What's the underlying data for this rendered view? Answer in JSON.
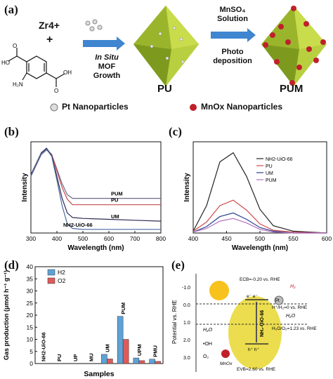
{
  "panels": {
    "a": {
      "label": "(a)",
      "reagent_zr": "Zr4+",
      "plus": "+",
      "struct_labels": {
        "cooh1": "HO",
        "cooh2": "OH",
        "nh2": "H₂N",
        "o1": "O",
        "o2": "O"
      },
      "step1": [
        "In Situ",
        "MOF",
        "Growth"
      ],
      "step2_top": [
        "MnSO₄",
        "Solution"
      ],
      "step2_bottom": [
        "Photo",
        "deposition"
      ],
      "product1": "PU",
      "product2": "PUM",
      "legend_pt": "Pt Nanoparticles",
      "legend_mn": "MnOx Nanoparticles"
    },
    "b": {
      "label": "(b)"
    },
    "c": {
      "label": "(c)"
    },
    "d": {
      "label": "(d)"
    },
    "e": {
      "label": "(e)",
      "ylabel": "Potential vs. RHE",
      "ticks": [
        "-1.0",
        "0.0",
        "1.0",
        "2.0",
        "3.0"
      ],
      "ecb": "ECB=-0.20 vs. RHE",
      "evb": "EVB=2.60 vs. RHE",
      "h2_level": "H⁺/H₂=0 vs. RHE",
      "o2_level": "H₂O/O₂=1.23 vs. RHE",
      "h2": "H₂",
      "h2o_right": "H₂O",
      "h2o_left": "H₂O",
      "oh": "•OH",
      "o2": "O₂",
      "mnox": "MnOx",
      "pt": "Pt",
      "electrons": "e⁻ e⁻",
      "holes": "h⁺ h⁺",
      "mof": "NH₂-UiO-66"
    }
  },
  "chart_data": [
    {
      "panel": "b",
      "type": "line",
      "xlabel": "Wavelength (nm)",
      "ylabel": "Intensity",
      "xlim": [
        300,
        800
      ],
      "xticks": [
        300,
        400,
        500,
        600,
        700,
        800
      ],
      "series": [
        {
          "name": "PUM",
          "color": "#6a6a8a",
          "x": [
            300,
            320,
            340,
            360,
            380,
            400,
            420,
            440,
            460,
            500,
            600,
            700,
            800
          ],
          "y": [
            0.62,
            0.74,
            0.86,
            0.91,
            0.86,
            0.7,
            0.54,
            0.42,
            0.38,
            0.38,
            0.38,
            0.38,
            0.38
          ]
        },
        {
          "name": "PU",
          "color": "#c64a4a",
          "x": [
            300,
            320,
            340,
            360,
            380,
            400,
            420,
            440,
            460,
            500,
            600,
            700,
            800
          ],
          "y": [
            0.63,
            0.75,
            0.87,
            0.92,
            0.86,
            0.68,
            0.5,
            0.37,
            0.31,
            0.31,
            0.31,
            0.31,
            0.31
          ]
        },
        {
          "name": "UM",
          "color": "#2a2a55",
          "x": [
            300,
            320,
            340,
            360,
            380,
            400,
            420,
            440,
            460,
            500,
            600,
            700,
            800
          ],
          "y": [
            0.64,
            0.76,
            0.88,
            0.93,
            0.85,
            0.62,
            0.38,
            0.22,
            0.17,
            0.16,
            0.15,
            0.14,
            0.13
          ]
        },
        {
          "name": "NH2-UiO-66",
          "color": "#4a6aa0",
          "x": [
            300,
            320,
            340,
            360,
            380,
            400,
            420,
            440,
            460,
            500,
            600,
            700,
            800
          ],
          "y": [
            0.63,
            0.75,
            0.87,
            0.92,
            0.84,
            0.58,
            0.3,
            0.1,
            0.05,
            0.04,
            0.04,
            0.04,
            0.04
          ]
        }
      ],
      "labels": [
        "PUM",
        "PU",
        "UM",
        "NH2-UiO-66"
      ]
    },
    {
      "panel": "c",
      "type": "line",
      "xlabel": "Wavelength (nm)",
      "ylabel": "Intensity",
      "xlim": [
        400,
        600
      ],
      "xticks": [
        400,
        450,
        500,
        550,
        600
      ],
      "legend": "top-right",
      "series": [
        {
          "name": "NH2-UiO-66",
          "color": "#222222",
          "x": [
            400,
            420,
            440,
            460,
            480,
            500,
            520,
            550,
            600
          ],
          "y": [
            0.02,
            0.3,
            0.78,
            0.88,
            0.62,
            0.26,
            0.08,
            0.02,
            0.0
          ]
        },
        {
          "name": "PU",
          "color": "#d24a4a",
          "x": [
            400,
            420,
            440,
            460,
            480,
            500,
            520,
            550,
            600
          ],
          "y": [
            0.02,
            0.12,
            0.3,
            0.36,
            0.25,
            0.1,
            0.03,
            0.01,
            0.0
          ]
        },
        {
          "name": "UM",
          "color": "#2a3f8a",
          "x": [
            400,
            420,
            440,
            460,
            480,
            500,
            520,
            550,
            600
          ],
          "y": [
            0.01,
            0.07,
            0.18,
            0.22,
            0.15,
            0.06,
            0.02,
            0.0,
            0.0
          ]
        },
        {
          "name": "PUM",
          "color": "#b070c0",
          "x": [
            400,
            420,
            440,
            460,
            480,
            500,
            520,
            550,
            600
          ],
          "y": [
            0.01,
            0.05,
            0.13,
            0.16,
            0.11,
            0.04,
            0.01,
            0.0,
            0.0
          ]
        }
      ]
    },
    {
      "panel": "d",
      "type": "bar",
      "xlabel": "Samples",
      "ylabel": "Gas production (μmol h⁻¹ g⁻¹)",
      "ylim": [
        0,
        40
      ],
      "yticks": [
        0,
        5,
        10,
        15,
        20,
        25,
        30,
        35,
        40
      ],
      "legend": "top-left",
      "categories": [
        "NH2-UiO-66",
        "PU",
        "UP",
        "MU",
        "UM",
        "PUM",
        "UPM",
        "PMU"
      ],
      "series": [
        {
          "name": "H2",
          "color": "#5ea2d6",
          "values": [
            0,
            0,
            0,
            0,
            3.8,
            19.5,
            2.3,
            1.8
          ]
        },
        {
          "name": "O2",
          "color": "#e05a5a",
          "values": [
            0,
            0,
            0,
            0,
            1.9,
            10.0,
            1.2,
            0.9
          ]
        }
      ]
    }
  ]
}
